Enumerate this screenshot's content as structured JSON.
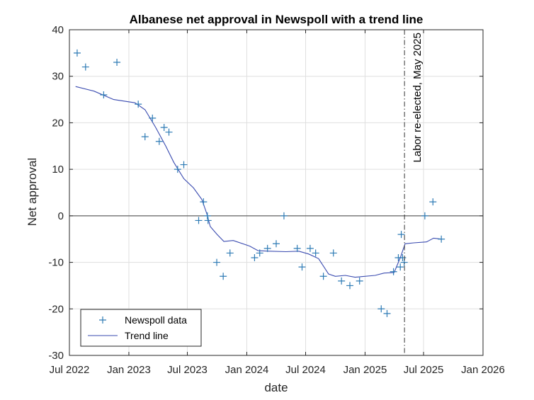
{
  "chart_data": {
    "type": "scatter",
    "title": "Albanese net approval in Newspoll with a trend line",
    "xlabel": "date",
    "ylabel": "Net approval",
    "xlim": [
      "2022-07-01",
      "2026-01-01"
    ],
    "ylim": [
      -30,
      40
    ],
    "x_ticks": [
      {
        "date": "2022-07-01",
        "label": "Jul 2022"
      },
      {
        "date": "2023-01-01",
        "label": "Jan 2023"
      },
      {
        "date": "2023-07-01",
        "label": "Jul 2023"
      },
      {
        "date": "2024-01-01",
        "label": "Jan 2024"
      },
      {
        "date": "2024-07-01",
        "label": "Jul 2024"
      },
      {
        "date": "2025-01-01",
        "label": "Jan 2025"
      },
      {
        "date": "2025-07-01",
        "label": "Jul 2025"
      },
      {
        "date": "2026-01-01",
        "label": "Jan 2026"
      }
    ],
    "y_ticks": [
      -30,
      -20,
      -10,
      0,
      10,
      20,
      30,
      40
    ],
    "grid": true,
    "legend_position": "bottom-left",
    "zero_line": true,
    "series": [
      {
        "name": "Newspoll data",
        "style": "plus-markers",
        "color": "#2e7bb5",
        "points": [
          {
            "x": "2022-07-25",
            "y": 35
          },
          {
            "x": "2022-08-20",
            "y": 32
          },
          {
            "x": "2022-10-15",
            "y": 26
          },
          {
            "x": "2022-11-25",
            "y": 33
          },
          {
            "x": "2023-01-30",
            "y": 24
          },
          {
            "x": "2023-02-20",
            "y": 17
          },
          {
            "x": "2023-03-15",
            "y": 21
          },
          {
            "x": "2023-04-05",
            "y": 16
          },
          {
            "x": "2023-04-20",
            "y": 19
          },
          {
            "x": "2023-05-05",
            "y": 18
          },
          {
            "x": "2023-06-01",
            "y": 10
          },
          {
            "x": "2023-06-20",
            "y": 11
          },
          {
            "x": "2023-08-05",
            "y": -1
          },
          {
            "x": "2023-08-20",
            "y": 3
          },
          {
            "x": "2023-09-01",
            "y": 0
          },
          {
            "x": "2023-09-03",
            "y": -1
          },
          {
            "x": "2023-09-30",
            "y": -10
          },
          {
            "x": "2023-10-20",
            "y": -13
          },
          {
            "x": "2023-11-10",
            "y": -8
          },
          {
            "x": "2024-01-25",
            "y": -9
          },
          {
            "x": "2024-02-10",
            "y": -8
          },
          {
            "x": "2024-03-05",
            "y": -7
          },
          {
            "x": "2024-04-01",
            "y": -6
          },
          {
            "x": "2024-04-25",
            "y": 0
          },
          {
            "x": "2024-06-05",
            "y": -7
          },
          {
            "x": "2024-06-20",
            "y": -11
          },
          {
            "x": "2024-07-15",
            "y": -7
          },
          {
            "x": "2024-08-01",
            "y": -8
          },
          {
            "x": "2024-08-25",
            "y": -13
          },
          {
            "x": "2024-09-25",
            "y": -8
          },
          {
            "x": "2024-10-20",
            "y": -14
          },
          {
            "x": "2024-11-15",
            "y": -15
          },
          {
            "x": "2024-12-15",
            "y": -14
          },
          {
            "x": "2025-02-20",
            "y": -20
          },
          {
            "x": "2025-03-10",
            "y": -21
          },
          {
            "x": "2025-03-30",
            "y": -12
          },
          {
            "x": "2025-04-14",
            "y": -9
          },
          {
            "x": "2025-04-20",
            "y": -11
          },
          {
            "x": "2025-04-23",
            "y": -4
          },
          {
            "x": "2025-04-27",
            "y": -9
          },
          {
            "x": "2025-05-02",
            "y": -10
          },
          {
            "x": "2025-07-05",
            "y": 0
          },
          {
            "x": "2025-07-30",
            "y": 3
          },
          {
            "x": "2025-08-25",
            "y": -5
          }
        ]
      },
      {
        "name": "Trend line",
        "style": "line",
        "color": "#3a4bb0",
        "points": [
          {
            "x": "2022-07-20",
            "y": 27.8
          },
          {
            "x": "2022-09-15",
            "y": 26.8
          },
          {
            "x": "2022-11-15",
            "y": 25.0
          },
          {
            "x": "2023-01-20",
            "y": 24.3
          },
          {
            "x": "2023-02-20",
            "y": 22.8
          },
          {
            "x": "2023-03-25",
            "y": 19.0
          },
          {
            "x": "2023-04-25",
            "y": 15.0
          },
          {
            "x": "2023-05-20",
            "y": 11.5
          },
          {
            "x": "2023-06-20",
            "y": 8.0
          },
          {
            "x": "2023-07-20",
            "y": 6.0
          },
          {
            "x": "2023-08-15",
            "y": 3.5
          },
          {
            "x": "2023-08-30",
            "y": 0.5
          },
          {
            "x": "2023-09-10",
            "y": -2.3
          },
          {
            "x": "2023-10-01",
            "y": -4.0
          },
          {
            "x": "2023-10-22",
            "y": -5.5
          },
          {
            "x": "2023-11-20",
            "y": -5.3
          },
          {
            "x": "2024-01-10",
            "y": -6.5
          },
          {
            "x": "2024-02-05",
            "y": -7.5
          },
          {
            "x": "2024-03-10",
            "y": -7.6
          },
          {
            "x": "2024-05-01",
            "y": -7.7
          },
          {
            "x": "2024-06-10",
            "y": -7.6
          },
          {
            "x": "2024-07-10",
            "y": -8.2
          },
          {
            "x": "2024-08-10",
            "y": -9.2
          },
          {
            "x": "2024-09-10",
            "y": -12.5
          },
          {
            "x": "2024-10-01",
            "y": -13.0
          },
          {
            "x": "2024-11-01",
            "y": -12.8
          },
          {
            "x": "2024-12-01",
            "y": -13.2
          },
          {
            "x": "2025-02-01",
            "y": -12.8
          },
          {
            "x": "2025-03-01",
            "y": -12.3
          },
          {
            "x": "2025-04-01",
            "y": -12.2
          },
          {
            "x": "2025-04-20",
            "y": -9.0
          },
          {
            "x": "2025-05-05",
            "y": -6.0
          },
          {
            "x": "2025-06-01",
            "y": -5.8
          },
          {
            "x": "2025-07-10",
            "y": -5.6
          },
          {
            "x": "2025-08-01",
            "y": -4.8
          },
          {
            "x": "2025-08-25",
            "y": -5.0
          }
        ]
      }
    ],
    "annotations": [
      {
        "type": "vline",
        "x": "2025-05-03",
        "style": "dash-dot",
        "text": "Labor re-elected, May 2025"
      }
    ],
    "colors": {
      "axis": "#262626",
      "grid": "#dfdfdf",
      "markers": "#2e7bb5",
      "trend": "#3a4bb0"
    }
  }
}
